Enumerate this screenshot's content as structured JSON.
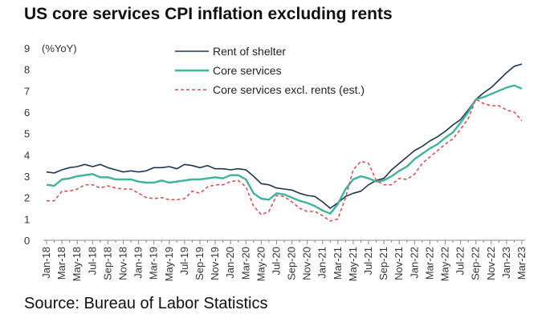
{
  "chart_data": {
    "type": "line",
    "title": "US core services CPI inflation excluding rents",
    "ylabel": "(%YoY)",
    "xlabel": "",
    "ylim": [
      0,
      9
    ],
    "yticks": [
      0,
      1,
      2,
      3,
      4,
      5,
      6,
      7,
      8,
      9
    ],
    "x_start": "Jan-18",
    "x_end": "Mar-23",
    "months": 63,
    "xtick_labels": [
      "Jan-18",
      "Mar-18",
      "May-18",
      "Jul-18",
      "Sep-18",
      "Nov-18",
      "Jan-19",
      "Mar-19",
      "May-19",
      "Jul-19",
      "Sep-19",
      "Nov-19",
      "Jan-20",
      "Mar-20",
      "May-20",
      "Jul-20",
      "Sep-20",
      "Nov-20",
      "Jan-21",
      "Mar-21",
      "May-21",
      "Jul-21",
      "Sep-21",
      "Nov-21",
      "Jan-22",
      "Mar-22",
      "May-22",
      "Jul-22",
      "Sep-22",
      "Nov-22",
      "Jan-23",
      "Mar-23"
    ],
    "legend_position": "top-center",
    "series": [
      {
        "name": "Rent of shelter",
        "color": "#1f3650",
        "style": "solid",
        "values": [
          3.2,
          3.15,
          3.3,
          3.4,
          3.45,
          3.55,
          3.45,
          3.55,
          3.4,
          3.3,
          3.2,
          3.25,
          3.2,
          3.25,
          3.4,
          3.4,
          3.45,
          3.35,
          3.55,
          3.5,
          3.4,
          3.5,
          3.35,
          3.35,
          3.3,
          3.35,
          3.3,
          3.0,
          2.65,
          2.6,
          2.45,
          2.4,
          2.35,
          2.2,
          2.1,
          2.05,
          1.8,
          1.5,
          1.75,
          2.05,
          2.2,
          2.3,
          2.6,
          2.8,
          2.9,
          3.3,
          3.6,
          3.9,
          4.2,
          4.4,
          4.65,
          4.85,
          5.1,
          5.4,
          5.65,
          6.1,
          6.6,
          6.9,
          7.15,
          7.5,
          7.85,
          8.15,
          8.25
        ]
      },
      {
        "name": "Core services",
        "color": "#3fb39a",
        "style": "solid",
        "values": [
          2.6,
          2.55,
          2.85,
          2.9,
          3.0,
          3.05,
          3.1,
          2.95,
          2.95,
          2.85,
          2.85,
          2.85,
          2.75,
          2.7,
          2.7,
          2.8,
          2.7,
          2.75,
          2.8,
          2.85,
          2.85,
          2.9,
          2.95,
          2.9,
          3.05,
          3.05,
          2.85,
          2.2,
          1.95,
          1.9,
          2.2,
          2.15,
          2.0,
          1.85,
          1.75,
          1.6,
          1.4,
          1.25,
          1.7,
          2.4,
          2.85,
          3.0,
          2.9,
          2.75,
          2.8,
          3.0,
          3.25,
          3.45,
          3.8,
          4.05,
          4.3,
          4.5,
          4.8,
          5.05,
          5.5,
          6.0,
          6.6,
          6.7,
          6.85,
          7.0,
          7.15,
          7.25,
          7.1
        ]
      },
      {
        "name": "Core services excl. rents (est.)",
        "color": "#d9544f",
        "style": "dashed",
        "values": [
          1.85,
          1.85,
          2.3,
          2.3,
          2.4,
          2.6,
          2.6,
          2.45,
          2.55,
          2.45,
          2.4,
          2.4,
          2.2,
          2.0,
          1.95,
          2.0,
          1.9,
          1.9,
          1.95,
          2.3,
          2.2,
          2.5,
          2.6,
          2.6,
          2.75,
          2.8,
          2.5,
          1.6,
          1.2,
          1.35,
          2.1,
          2.05,
          1.8,
          1.5,
          1.35,
          1.35,
          1.15,
          0.9,
          1.0,
          2.0,
          3.3,
          3.7,
          3.6,
          2.8,
          2.6,
          2.6,
          2.9,
          2.85,
          3.1,
          3.6,
          3.9,
          4.2,
          4.5,
          4.75,
          5.2,
          5.7,
          6.6,
          6.4,
          6.3,
          6.3,
          6.1,
          6.0,
          5.6
        ]
      }
    ]
  },
  "source": "Source: Bureau of Labor Statistics"
}
